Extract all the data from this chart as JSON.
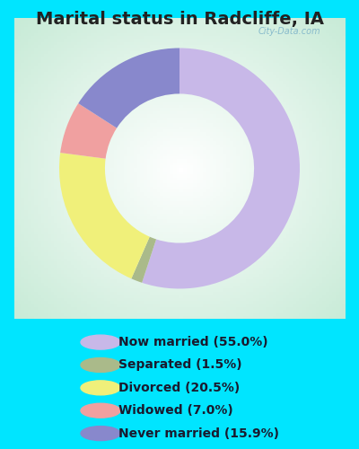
{
  "title": "Marital status in Radcliffe, IA",
  "slices": [
    {
      "label": "Now married (55.0%)",
      "value": 55.0,
      "color": "#c8b8e8"
    },
    {
      "label": "Separated (1.5%)",
      "value": 1.5,
      "color": "#aaba8a"
    },
    {
      "label": "Divorced (20.5%)",
      "value": 20.5,
      "color": "#f0f07a"
    },
    {
      "label": "Widowed (7.0%)",
      "value": 7.0,
      "color": "#f0a0a0"
    },
    {
      "label": "Never married (15.9%)",
      "value": 15.9,
      "color": "#8888cc"
    }
  ],
  "bg_outer": "#00e5ff",
  "title_color": "#222222",
  "title_fontsize": 14,
  "legend_fontsize": 10,
  "legend_text_color": "#1a1a2e",
  "watermark": "City-Data.com",
  "watermark_color": "#88bbcc",
  "donut_width": 0.38,
  "startangle": 90
}
